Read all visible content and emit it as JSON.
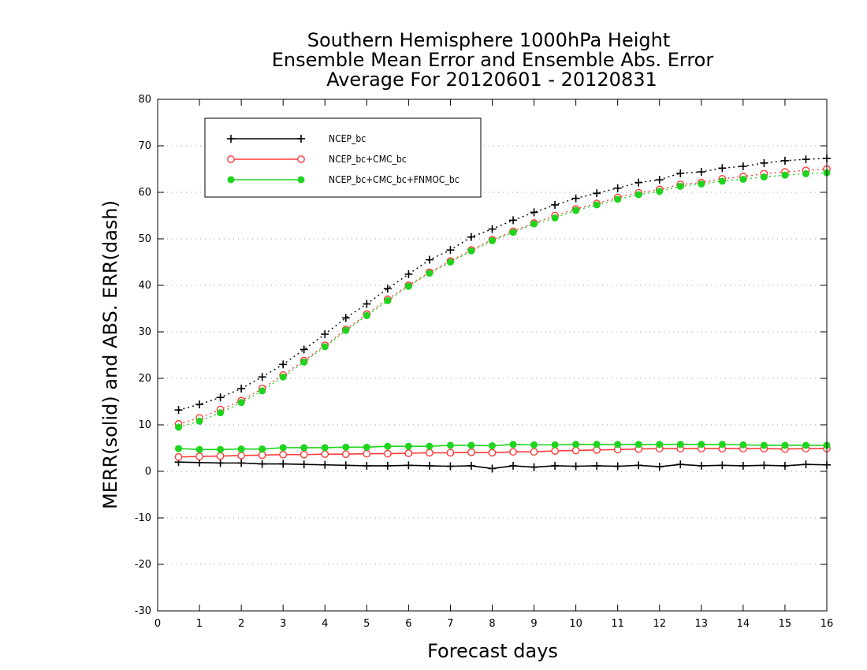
{
  "chart_data": {
    "type": "line",
    "title_lines": [
      "Southern Hemisphere 1000hPa Height",
      "Ensemble Mean Error and Ensemble Abs. Error",
      "Average For 20120601 - 20120831"
    ],
    "xlabel": "Forecast days",
    "ylabel": "MERR(solid) and ABS. ERR(dash)",
    "xlim": [
      0,
      16
    ],
    "ylim": [
      -30,
      80
    ],
    "x_ticks": [
      0,
      1,
      2,
      3,
      4,
      5,
      6,
      7,
      8,
      9,
      10,
      11,
      12,
      13,
      14,
      15,
      16
    ],
    "y_ticks": [
      -30,
      -20,
      -10,
      0,
      10,
      20,
      30,
      40,
      50,
      60,
      70,
      80
    ],
    "grid": "horizontal-dotted",
    "legend_position": "top-left",
    "x": [
      0.5,
      1,
      1.5,
      2,
      2.5,
      3,
      3.5,
      4,
      4.5,
      5,
      5.5,
      6,
      6.5,
      7,
      7.5,
      8,
      8.5,
      9,
      9.5,
      10,
      10.5,
      11,
      11.5,
      12,
      12.5,
      13,
      13.5,
      14,
      14.5,
      15,
      15.5,
      16
    ],
    "series": [
      {
        "name": "NCEP_bc",
        "color": "#000000",
        "marker": "plus",
        "merr": [
          2.0,
          1.9,
          1.8,
          1.8,
          1.6,
          1.6,
          1.5,
          1.4,
          1.3,
          1.2,
          1.2,
          1.3,
          1.2,
          1.1,
          1.2,
          0.6,
          1.2,
          0.9,
          1.2,
          1.1,
          1.2,
          1.1,
          1.3,
          1.0,
          1.5,
          1.2,
          1.3,
          1.2,
          1.3,
          1.2,
          1.5,
          1.4
        ],
        "abs_err": [
          13.2,
          14.4,
          15.9,
          17.8,
          20.3,
          23.0,
          26.2,
          29.5,
          33.0,
          36.0,
          39.3,
          42.4,
          45.5,
          47.6,
          50.4,
          52.1,
          54.0,
          55.7,
          57.3,
          58.7,
          59.8,
          60.9,
          62.1,
          62.7,
          64.1,
          64.4,
          65.2,
          65.6,
          66.3,
          66.8,
          67.1,
          67.3
        ]
      },
      {
        "name": "NCEP_bc+CMC_bc",
        "color": "#ff3b3b",
        "marker": "open-circle",
        "merr": [
          3.1,
          3.2,
          3.3,
          3.4,
          3.5,
          3.6,
          3.6,
          3.7,
          3.7,
          3.8,
          3.8,
          3.9,
          4.0,
          4.0,
          4.1,
          4.0,
          4.2,
          4.2,
          4.4,
          4.5,
          4.6,
          4.7,
          4.8,
          4.9,
          4.9,
          4.9,
          4.9,
          4.9,
          4.9,
          4.8,
          4.9,
          4.9
        ],
        "abs_err": [
          10.2,
          11.5,
          13.3,
          15.2,
          17.8,
          20.7,
          23.8,
          27.1,
          30.5,
          33.8,
          37.0,
          40.0,
          42.8,
          45.2,
          47.6,
          49.8,
          51.6,
          53.4,
          55.0,
          56.4,
          57.6,
          58.9,
          59.9,
          60.6,
          61.7,
          62.1,
          62.9,
          63.4,
          64.0,
          64.4,
          64.7,
          65.0
        ]
      },
      {
        "name": "NCEP_bc+CMC_bc+FNMOC_bc",
        "color": "#1ed41e",
        "marker": "filled-circle",
        "merr": [
          4.9,
          4.7,
          4.7,
          4.8,
          4.8,
          5.1,
          5.1,
          5.1,
          5.2,
          5.2,
          5.4,
          5.4,
          5.4,
          5.6,
          5.6,
          5.5,
          5.8,
          5.7,
          5.7,
          5.8,
          5.8,
          5.8,
          5.8,
          5.8,
          5.8,
          5.8,
          5.8,
          5.7,
          5.6,
          5.6,
          5.6,
          5.6
        ],
        "abs_err": [
          9.5,
          10.8,
          12.6,
          14.8,
          17.3,
          20.3,
          23.5,
          26.8,
          30.3,
          33.5,
          36.7,
          39.8,
          42.6,
          45.0,
          47.4,
          49.6,
          51.4,
          53.2,
          54.5,
          56.1,
          57.3,
          58.5,
          59.5,
          60.2,
          61.3,
          61.8,
          62.4,
          62.8,
          63.3,
          63.7,
          64.0,
          64.2
        ]
      }
    ]
  }
}
